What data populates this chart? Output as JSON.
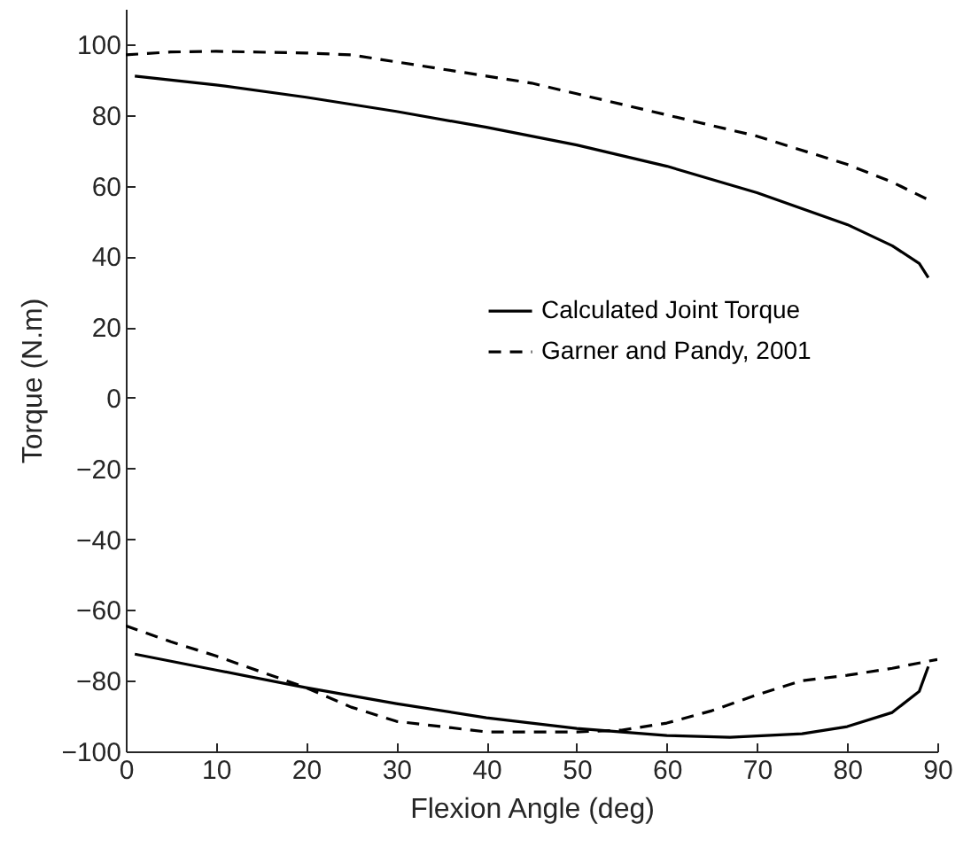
{
  "chart_data": {
    "type": "line",
    "xlabel": "Flexion Angle (deg)",
    "ylabel": "Torque (N.m)",
    "xlim": [
      0,
      90
    ],
    "xticks": [
      0,
      10,
      20,
      30,
      40,
      50,
      60,
      70,
      80,
      90
    ],
    "ylim": [
      -100,
      110
    ],
    "yticks": [
      -100,
      -80,
      -60,
      -40,
      -20,
      0,
      20,
      40,
      60,
      80,
      100
    ],
    "grid": false,
    "legend": "center",
    "series": [
      {
        "name": "Calculated Joint Torque",
        "color": "#000000",
        "line_style": "solid",
        "x": [
          1,
          10,
          20,
          30,
          40,
          50,
          60,
          70,
          80,
          85,
          88,
          89,
          null,
          1,
          10,
          20,
          30,
          40,
          50,
          60,
          67,
          75,
          80,
          85,
          88,
          89
        ],
        "values": [
          91,
          88.5,
          85,
          81,
          76.5,
          71.5,
          65.5,
          58,
          49,
          43,
          38,
          34,
          null,
          -72.5,
          -77,
          -82,
          -86.5,
          -90.5,
          -93.5,
          -95.5,
          -96,
          -95,
          -93,
          -89,
          -83,
          -76
        ]
      },
      {
        "name": "Garner and Pandy, 2001",
        "color": "#000000",
        "line_style": "dashed",
        "x": [
          0,
          5,
          10,
          20,
          25,
          30,
          40,
          45,
          50,
          60,
          70,
          80,
          85,
          89,
          null,
          0,
          5,
          10,
          15,
          20,
          25,
          30,
          40,
          50,
          55,
          60,
          65,
          70,
          75,
          80,
          85,
          90
        ],
        "values": [
          97,
          97.8,
          98,
          97.5,
          97,
          95,
          91,
          89,
          86,
          80,
          74,
          66,
          61,
          56,
          null,
          -64.5,
          -69,
          -73,
          -77.5,
          -82,
          -87.5,
          -91.5,
          -94.5,
          -94.5,
          -94,
          -92,
          -88.5,
          -84,
          -80,
          -78.5,
          -76.5,
          -74
        ]
      }
    ]
  }
}
